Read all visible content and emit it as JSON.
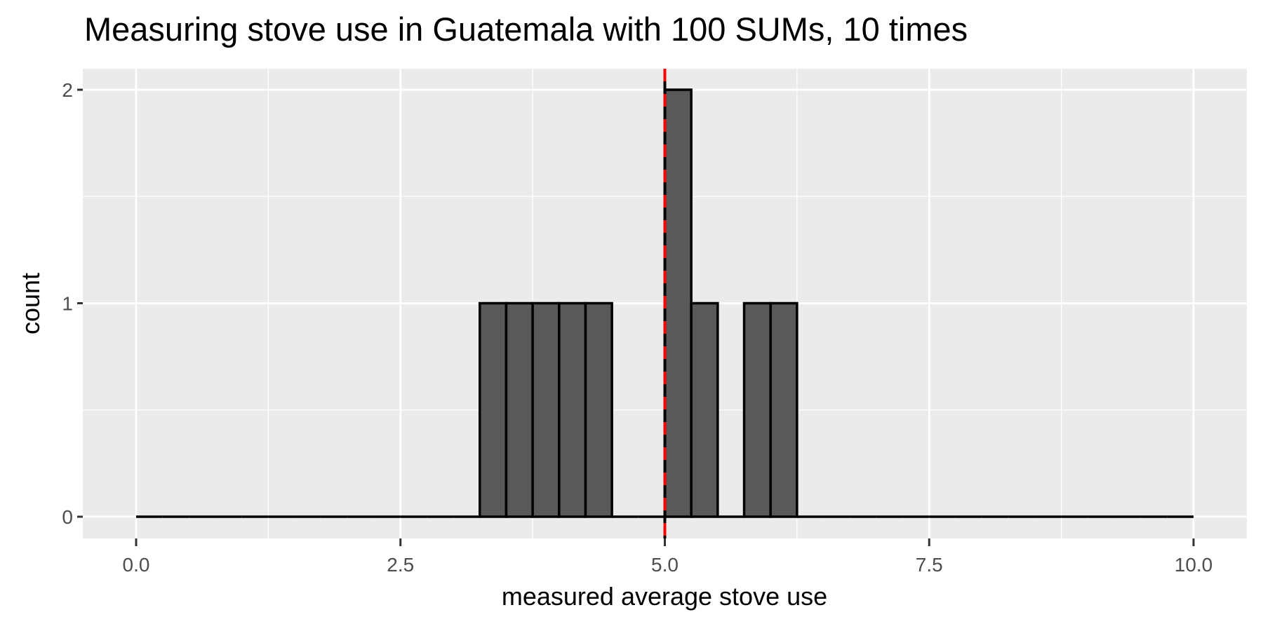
{
  "chart_data": {
    "type": "bar",
    "subtype": "histogram",
    "title": "Measuring stove use in Guatemala with 100 SUMs, 10 times",
    "xlabel": "measured average stove use",
    "ylabel": "count",
    "xlim": [
      0,
      10
    ],
    "ylim": [
      0,
      2
    ],
    "x_ticks": [
      "0.0",
      "2.5",
      "5.0",
      "7.5",
      "10.0"
    ],
    "x_tick_values": [
      0,
      2.5,
      5,
      7.5,
      10
    ],
    "y_ticks": [
      "0",
      "1",
      "2"
    ],
    "y_tick_values": [
      0,
      1,
      2
    ],
    "bin_width": 0.25,
    "bins": [
      {
        "start": 3.25,
        "end": 3.5,
        "count": 1
      },
      {
        "start": 3.5,
        "end": 3.75,
        "count": 1
      },
      {
        "start": 3.75,
        "end": 4.0,
        "count": 1
      },
      {
        "start": 4.0,
        "end": 4.25,
        "count": 1
      },
      {
        "start": 4.25,
        "end": 4.5,
        "count": 1
      },
      {
        "start": 5.0,
        "end": 5.25,
        "count": 2
      },
      {
        "start": 5.25,
        "end": 5.5,
        "count": 1
      },
      {
        "start": 5.75,
        "end": 6.0,
        "count": 1
      },
      {
        "start": 6.0,
        "end": 6.25,
        "count": 1
      }
    ],
    "zero_count_range": [
      0,
      10
    ],
    "reference_line": {
      "x": 5.0,
      "style": "dashed",
      "color": "#FF0000"
    },
    "grid": true,
    "legend": null
  },
  "colors": {
    "panel_bg": "#EBEBEB",
    "grid": "#FFFFFF",
    "bar_fill": "#595959",
    "bar_outline": "#000000",
    "vline": "#FF0000",
    "tick_text": "#4D4D4D"
  }
}
